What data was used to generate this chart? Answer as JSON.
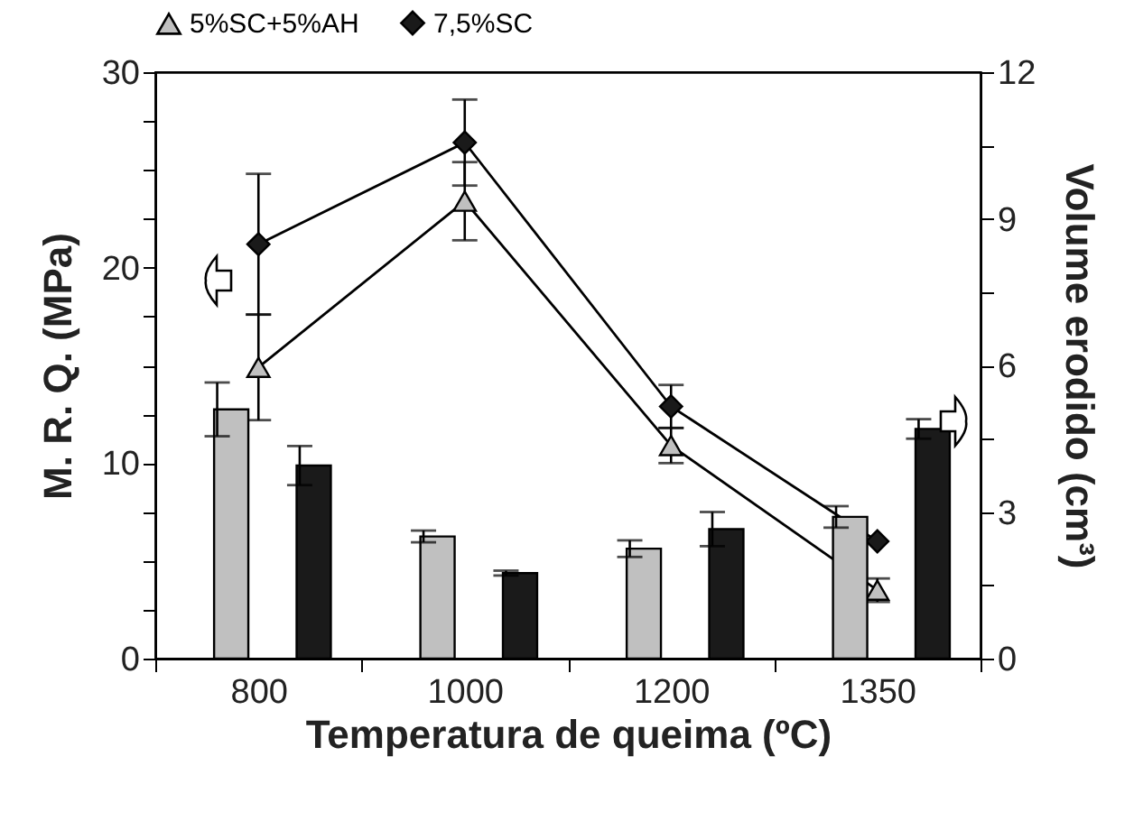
{
  "chart_data": {
    "type": "bar",
    "xlabel": "Temperatura de queima (ºC)",
    "ylabel": "M. R. Q. (MPa)",
    "y2label": "Volume erodido (cm³)",
    "categories": [
      "800",
      "1000",
      "1200",
      "1350"
    ],
    "ylim": [
      0,
      30
    ],
    "yticks": [
      0,
      {
        "value": 2.5,
        "label": null
      },
      {
        "value": 5,
        "label": null
      },
      {
        "value": 7.5,
        "label": null
      },
      10,
      {
        "value": 12.5,
        "label": null
      },
      {
        "value": 15,
        "label": null
      },
      {
        "value": 17.5,
        "label": null
      },
      20,
      {
        "value": 22.5,
        "label": null
      },
      {
        "value": 25,
        "label": null
      },
      {
        "value": 27.5,
        "label": null
      },
      30
    ],
    "y2lim": [
      0,
      12
    ],
    "y2ticks": [
      0,
      {
        "value": 1.5,
        "label": null
      },
      3,
      {
        "value": 4.5,
        "label": null
      },
      6,
      {
        "value": 7.5,
        "label": null
      },
      9,
      {
        "value": 10.5,
        "label": null
      },
      12
    ],
    "legend": "top",
    "grid": false,
    "series": [
      {
        "axis": "y2",
        "color": "#c0c0c0",
        "values": [
          5.1,
          2.5,
          2.25,
          2.9
        ],
        "errors": [
          0.55,
          0.12,
          0.17,
          0.22
        ]
      },
      {
        "axis": "y2",
        "color": "#1a1a1a",
        "values": [
          3.95,
          1.75,
          2.65,
          4.7
        ],
        "errors": [
          0.4,
          0.05,
          0.35,
          0.2
        ]
      },
      {
        "type": "line",
        "name": "5%SC+5%AH",
        "color": "#c0c0c0",
        "marker": "triangle",
        "values": [
          14.9,
          23.4,
          10.9,
          3.5
        ],
        "errors": [
          2.7,
          2,
          0.9,
          0.6
        ]
      },
      {
        "type": "line",
        "name": "7,5%SC",
        "color": "#1a1a1a",
        "marker": "diamond",
        "values": [
          21.2,
          26.4,
          12.9,
          6
        ],
        "errors": [
          3.6,
          2.2,
          1.1,
          null
        ]
      }
    ]
  }
}
